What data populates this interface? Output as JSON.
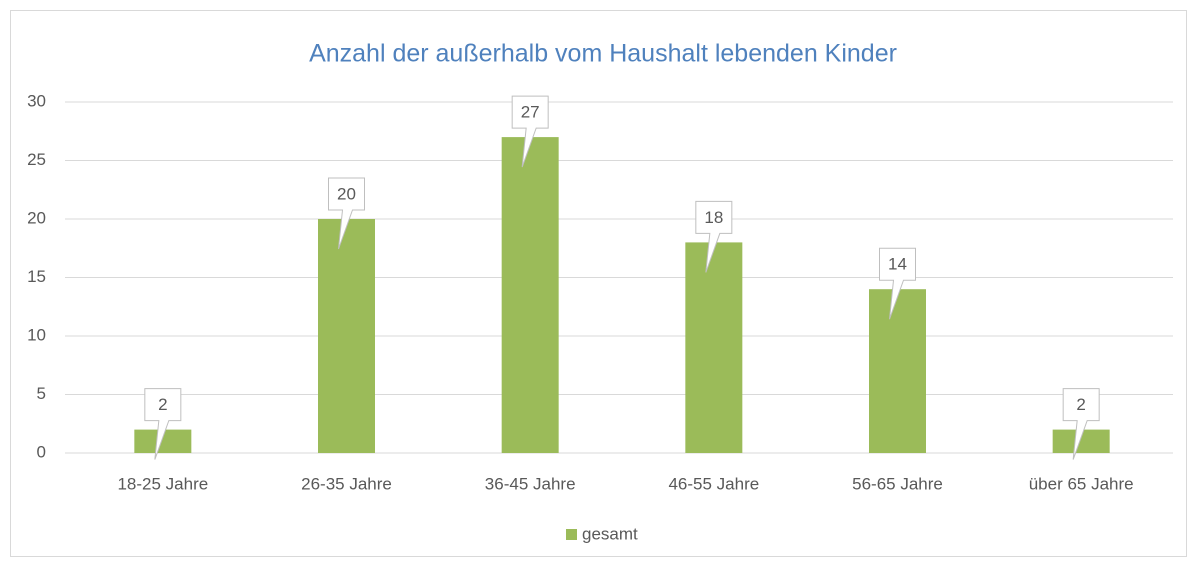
{
  "chart_data": {
    "type": "bar",
    "title": "Anzahl der außerhalb vom Haushalt lebenden Kinder",
    "categories": [
      "18-25 Jahre",
      "26-35 Jahre",
      "36-45 Jahre",
      "46-55 Jahre",
      "56-65 Jahre",
      "über 65 Jahre"
    ],
    "series": [
      {
        "name": "gesamt",
        "color": "#9bbb59",
        "values": [
          2,
          20,
          27,
          18,
          14,
          2
        ]
      }
    ],
    "ylim": [
      0,
      30
    ],
    "yticks": [
      0,
      5,
      10,
      15,
      20,
      25,
      30
    ],
    "grid": true,
    "legend": "bottom",
    "data_labels": true
  }
}
